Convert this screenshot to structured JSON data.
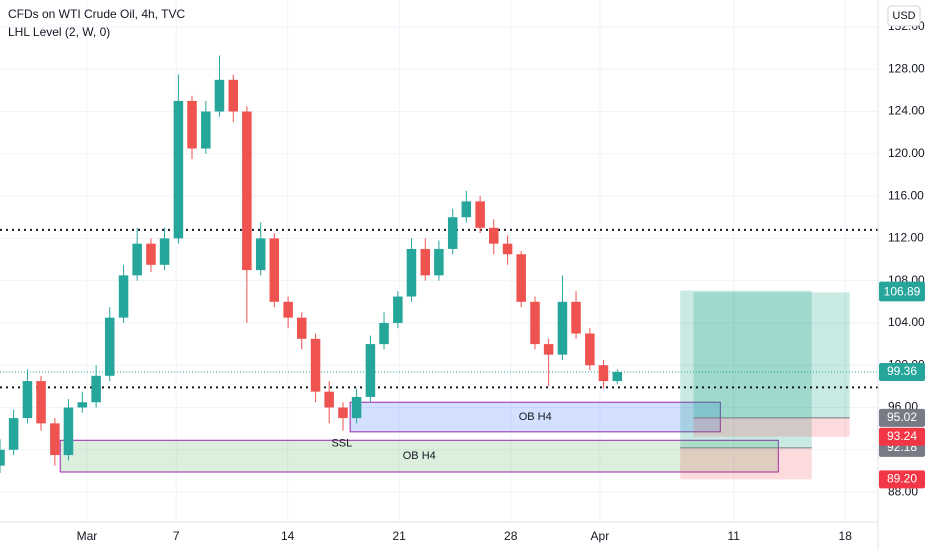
{
  "chart_data": {
    "type": "candlestick",
    "title": "CFDs on WTI Crude Oil, 4h, TVC",
    "indicator": "LHL Level (2, W, 0)",
    "currency": "USD",
    "up_color": "#26a69a",
    "down_color": "#ef5350",
    "grid": true,
    "xlim": [
      -3.9,
      35.47
    ],
    "ylim": [
      85.17,
      134.55
    ],
    "xticks": [
      {
        "value": 0,
        "label": "Mar"
      },
      {
        "value": 4,
        "label": "7"
      },
      {
        "value": 9,
        "label": "14"
      },
      {
        "value": 14,
        "label": "21"
      },
      {
        "value": 19,
        "label": "28"
      },
      {
        "value": 23,
        "label": "Apr"
      },
      {
        "value": 29,
        "label": "11"
      },
      {
        "value": 34,
        "label": "18"
      }
    ],
    "yticks": [
      {
        "value": 88,
        "label": "88.00"
      },
      {
        "value": 92,
        "label": "92.00"
      },
      {
        "value": 96,
        "label": "96.00"
      },
      {
        "value": 100,
        "label": "100.00"
      },
      {
        "value": 104,
        "label": "104.00"
      },
      {
        "value": 108,
        "label": "108.00"
      },
      {
        "value": 112,
        "label": "112.00"
      },
      {
        "value": 116,
        "label": "116.00"
      },
      {
        "value": 120,
        "label": "120.00"
      },
      {
        "value": 124,
        "label": "124.00"
      },
      {
        "value": 128,
        "label": "128.00"
      },
      {
        "value": 132,
        "label": "132.00"
      }
    ],
    "x": [
      -3.9,
      -3.29,
      -2.67,
      -2.06,
      -1.44,
      -0.83,
      -0.21,
      0.41,
      1.02,
      1.64,
      2.25,
      2.87,
      3.48,
      4.1,
      4.71,
      5.33,
      5.94,
      6.56,
      7.17,
      7.79,
      8.4,
      9.02,
      9.63,
      10.25,
      10.86,
      11.48,
      12.09,
      12.71,
      13.32,
      13.94,
      14.55,
      15.17,
      15.78,
      16.4,
      17.01,
      17.63,
      18.24,
      18.86,
      19.47,
      20.09,
      20.7,
      21.32,
      21.93,
      22.55,
      23.16,
      23.78
    ],
    "open": [
      90.5,
      92,
      95,
      98.5,
      94.5,
      91.5,
      96,
      96.5,
      99,
      104.5,
      108.5,
      111.5,
      109.5,
      112,
      125,
      120.5,
      124,
      127,
      124,
      109,
      112,
      106,
      104.5,
      102.5,
      97.5,
      96,
      95,
      97,
      102,
      104,
      106.5,
      111,
      108.5,
      111,
      114,
      115.5,
      113,
      111.5,
      110.5,
      106,
      102,
      101,
      106,
      103,
      100,
      98.5
    ],
    "high": [
      93,
      95.8,
      99.6,
      99,
      95,
      96.8,
      97.5,
      100,
      105.5,
      109.5,
      113,
      112,
      113,
      127.5,
      125.5,
      125,
      129.3,
      127.5,
      124.5,
      113.5,
      112.5,
      106.5,
      105,
      103,
      98.5,
      96.5,
      97.8,
      102.8,
      105,
      107,
      112,
      112,
      111.8,
      114.8,
      116.5,
      116,
      113.8,
      112.3,
      110.8,
      106.5,
      102.5,
      108.5,
      107,
      103.5,
      100.5,
      99.6
    ],
    "low": [
      89.8,
      91.5,
      94.5,
      93.8,
      90.5,
      91,
      95.5,
      96,
      98.5,
      104,
      108,
      108.8,
      109,
      111.5,
      119.5,
      120,
      123.5,
      123,
      104,
      108.5,
      105.5,
      103.5,
      101.5,
      96.5,
      94.5,
      93.8,
      94.5,
      96.5,
      101.5,
      103.5,
      106,
      108,
      108,
      110.5,
      113.5,
      112.5,
      110.5,
      109.5,
      105.5,
      101.5,
      98,
      100.5,
      102.5,
      99.5,
      97.8,
      98.2
    ],
    "close": [
      92,
      95,
      98.5,
      94.5,
      91.5,
      96,
      96.5,
      99,
      104.5,
      108.5,
      111.5,
      109.5,
      112,
      125,
      120.5,
      124,
      127,
      124,
      109,
      112,
      106,
      104.5,
      102.5,
      97.5,
      96,
      95,
      97,
      102,
      104,
      106.5,
      111,
      108.5,
      111,
      114,
      115.5,
      113,
      111.5,
      110.5,
      106,
      102,
      101,
      106,
      103,
      100,
      98.5,
      99.36
    ],
    "last_price": 99.36,
    "last_label": "99.36",
    "levels": [
      112.8,
      97.9
    ],
    "zones": [
      {
        "label": "OB H4",
        "x": [
          11.8,
          28.4
        ],
        "y": [
          93.7,
          96.5
        ],
        "color": "#2962ff"
      },
      {
        "label": "OB H4",
        "x": [
          -1.2,
          31.0
        ],
        "y": [
          89.9,
          92.9
        ],
        "color": "#4caf50"
      }
    ],
    "annotations": [
      {
        "text": "SSL",
        "x": 11.43,
        "y": 92.6
      }
    ],
    "positions": [
      {
        "x": [
          26.6,
          32.5
        ],
        "target": 107.06,
        "target_label": "107.06",
        "entry": 92.18,
        "entry_label": "92.18",
        "stop": 89.2,
        "stop_label": "89.20"
      },
      {
        "x": [
          27.2,
          34.2
        ],
        "target": 106.89,
        "target_label": "106.89",
        "entry": 95.02,
        "entry_label": "95.02",
        "stop": 93.24,
        "stop_label": "93.24"
      }
    ]
  }
}
